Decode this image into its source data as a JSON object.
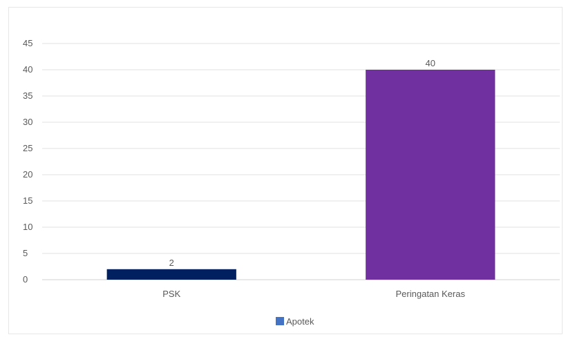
{
  "chart_data": {
    "type": "bar",
    "title": "",
    "xlabel": "",
    "ylabel": "",
    "categories": [
      "PSK",
      "Peringatan Keras"
    ],
    "series": [
      {
        "name": "Apotek",
        "values": [
          2,
          40
        ]
      }
    ],
    "bar_colors": [
      "#002060",
      "#7030A0"
    ],
    "legend_swatch_color": "#4472C4",
    "ylim": [
      0,
      45
    ],
    "yticks": [
      0,
      5,
      10,
      15,
      20,
      25,
      30,
      35,
      40,
      45
    ],
    "data_labels": [
      "2",
      "40"
    ],
    "grid": true,
    "legend_position": "bottom"
  }
}
